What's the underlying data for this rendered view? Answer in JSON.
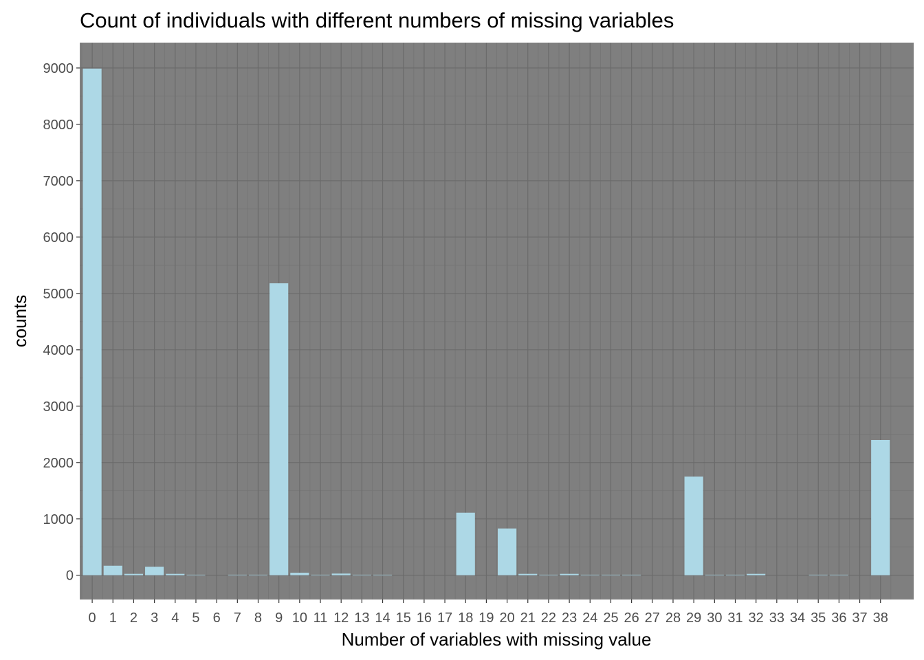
{
  "chart_data": {
    "type": "bar",
    "title": "Count of individuals with different numbers of missing variables",
    "xlabel": "Number of variables with missing value",
    "ylabel": "counts",
    "categories": [
      "0",
      "1",
      "2",
      "3",
      "4",
      "5",
      "6",
      "7",
      "8",
      "9",
      "10",
      "11",
      "12",
      "13",
      "14",
      "15",
      "16",
      "17",
      "18",
      "19",
      "20",
      "21",
      "22",
      "23",
      "24",
      "25",
      "26",
      "27",
      "28",
      "29",
      "30",
      "31",
      "32",
      "33",
      "34",
      "35",
      "36",
      "37",
      "38"
    ],
    "values": [
      8990,
      170,
      25,
      150,
      25,
      10,
      0,
      10,
      10,
      5180,
      45,
      10,
      30,
      10,
      10,
      0,
      0,
      0,
      1110,
      0,
      830,
      25,
      10,
      25,
      10,
      10,
      10,
      0,
      0,
      1750,
      10,
      10,
      25,
      0,
      0,
      10,
      10,
      0,
      2400
    ],
    "ylim": [
      -430,
      9450
    ],
    "yticks": [
      0,
      1000,
      2000,
      3000,
      4000,
      5000,
      6000,
      7000,
      8000,
      9000
    ],
    "grid": true,
    "colors": {
      "bar": "#add8e6",
      "panel": "#7f7f7f",
      "grid_major": "#6b6b6b",
      "grid_minor": "#747474"
    }
  }
}
